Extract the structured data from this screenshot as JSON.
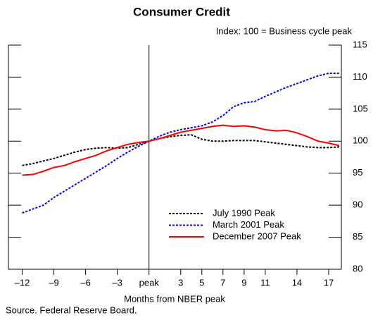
{
  "chart_data": {
    "type": "line",
    "title": "Consumer Credit",
    "subtitle": "Index: 100 = Business cycle peak",
    "x_label": "Months from NBER peak",
    "source": "Source. Federal Reserve Board.",
    "x": [
      -12,
      -11,
      -10,
      -9,
      -8,
      -7,
      -6,
      -5,
      -4,
      -3,
      -2,
      -1,
      0,
      1,
      2,
      3,
      4,
      5,
      6,
      7,
      8,
      9,
      10,
      11,
      12,
      13,
      14,
      15,
      16,
      17,
      18
    ],
    "series": [
      {
        "name": "July 1990 Peak",
        "color": "#000000",
        "dash": "dotted",
        "values": [
          96.2,
          96.5,
          96.9,
          97.3,
          97.8,
          98.3,
          98.7,
          98.9,
          99.0,
          98.9,
          99.0,
          99.5,
          100,
          100.4,
          100.7,
          100.9,
          101.0,
          100.3,
          100.0,
          100.0,
          100.1,
          100.1,
          100.1,
          99.9,
          99.7,
          99.5,
          99.3,
          99.1,
          99.0,
          99.0,
          99.1
        ]
      },
      {
        "name": "March 2001 Peak",
        "color": "#0000ff",
        "dash": "dotted",
        "values": [
          88.8,
          89.4,
          90.0,
          91.2,
          92.2,
          93.2,
          94.2,
          95.2,
          96.2,
          97.3,
          98.3,
          99.2,
          100,
          100.8,
          101.4,
          101.8,
          102.1,
          102.4,
          103.0,
          104.0,
          105.4,
          106.0,
          106.2,
          107.0,
          107.7,
          108.4,
          109.0,
          109.6,
          110.2,
          110.6,
          110.6
        ]
      },
      {
        "name": "December 2007 Peak",
        "color": "#ff0000",
        "dash": "solid",
        "values": [
          94.7,
          94.8,
          95.3,
          95.9,
          96.2,
          96.8,
          97.3,
          97.8,
          98.5,
          99.0,
          99.5,
          99.8,
          100,
          100.4,
          100.9,
          101.4,
          101.7,
          102.0,
          102.3,
          102.5,
          102.3,
          102.4,
          102.2,
          101.8,
          101.6,
          101.7,
          101.3,
          100.7,
          100.0,
          99.7,
          99.3
        ]
      }
    ],
    "xlim": [
      -13.3,
      18.2
    ],
    "xticks": [
      {
        "value": -12,
        "label": "–12"
      },
      {
        "value": -9,
        "label": "–9"
      },
      {
        "value": -6,
        "label": "–6"
      },
      {
        "value": -3,
        "label": "–3"
      },
      {
        "value": 0,
        "label": "peak"
      },
      3,
      5,
      7,
      9,
      11,
      14,
      17
    ],
    "ylim": [
      80,
      115
    ],
    "yticks": [
      80,
      85,
      90,
      95,
      100,
      105,
      110,
      115
    ],
    "legend": "lower-right"
  }
}
